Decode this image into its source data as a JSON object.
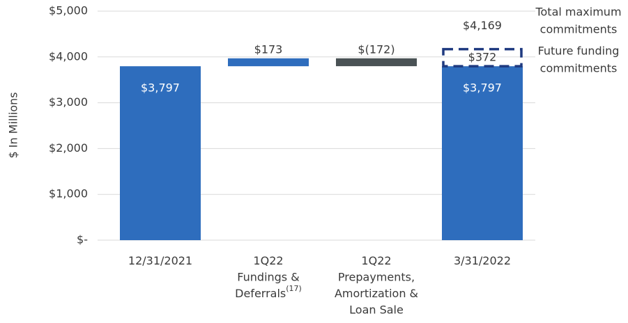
{
  "chart_data": {
    "type": "waterfall",
    "y_axis_label": "$ In Millions",
    "categories": [
      [
        "12/31/2021"
      ],
      [
        "1Q22",
        "Fundings &",
        "Deferrals"
      ],
      [
        "1Q22",
        "Prepayments,",
        "Amortization &",
        "Loan Sale"
      ],
      [
        "3/31/2022"
      ]
    ],
    "category_footnotes": [
      null,
      "(17)",
      null,
      null
    ],
    "measures": [
      "absolute",
      "relative",
      "relative",
      "absolute"
    ],
    "values": [
      3797,
      173,
      -172,
      3797
    ],
    "value_labels": [
      "$3,797",
      "$173",
      "$(172)",
      "$3,797"
    ],
    "colors": [
      "#2e6dbd",
      "#2e6dbd",
      "#4a5255",
      "#2e6dbd"
    ],
    "future_funding": {
      "value": 372,
      "label": "$372",
      "color": "#1f3a80"
    },
    "total": {
      "value": 4169,
      "label": "$4,169"
    },
    "annotations": [
      [
        "Total maximum",
        "commitments"
      ],
      [
        "Future funding",
        "commitments"
      ]
    ],
    "ylim": [
      0,
      5000
    ],
    "yticks": [
      {
        "value": 0,
        "label": "$-"
      },
      {
        "value": 1000,
        "label": "$1,000"
      },
      {
        "value": 2000,
        "label": "$2,000"
      },
      {
        "value": 3000,
        "label": "$3,000"
      },
      {
        "value": 4000,
        "label": "$4,000"
      },
      {
        "value": 5000,
        "label": "$5,000"
      }
    ],
    "grid": true
  }
}
